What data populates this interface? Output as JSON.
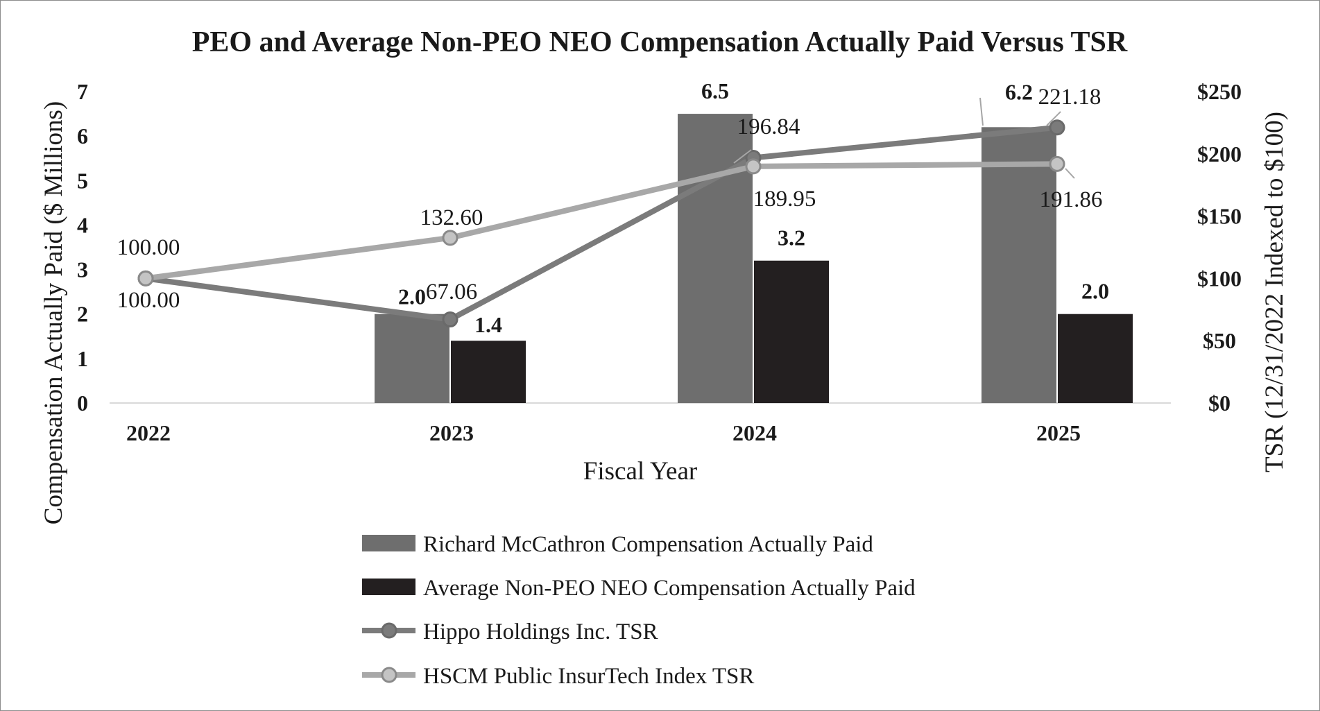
{
  "chart_data": {
    "type": "bar",
    "title": "PEO and Average Non-PEO NEO Compensation Actually Paid Versus TSR",
    "xlabel": "Fiscal Year",
    "ylabel": "Compensation Actually Paid ($ Millions)",
    "y2label": "TSR (12/31/2022 Indexed to $100)",
    "categories": [
      "2022",
      "2023",
      "2024",
      "2025"
    ],
    "ylim": [
      0,
      7
    ],
    "yticks": [
      "0",
      "1",
      "2",
      "3",
      "4",
      "5",
      "6",
      "7"
    ],
    "y2lim": [
      0,
      250
    ],
    "y2ticks": [
      "$0",
      "$50",
      "$100",
      "$150",
      "$200",
      "$250"
    ],
    "grid": false,
    "legend_position": "bottom",
    "series": [
      {
        "name": "Richard McCathron Compensation Actually Paid",
        "type": "bar",
        "axis": "left",
        "color": "#6e6e6e",
        "values": [
          null,
          2.0,
          6.5,
          6.2
        ],
        "labels": [
          "",
          "2.0",
          "6.5",
          "6.2"
        ]
      },
      {
        "name": "Average Non-PEO NEO Compensation Actually Paid",
        "type": "bar",
        "axis": "left",
        "color": "#231f20",
        "values": [
          null,
          1.4,
          3.2,
          2.0
        ],
        "labels": [
          "",
          "1.4",
          "3.2",
          "2.0"
        ]
      },
      {
        "name": "Hippo Holdings Inc. TSR",
        "type": "line",
        "axis": "right",
        "color": "#7b7b7b",
        "values": [
          100.0,
          67.06,
          196.84,
          221.18
        ],
        "labels": [
          "100.00",
          "67.06",
          "196.84",
          "221.18"
        ]
      },
      {
        "name": "HSCM Public InsurTech Index TSR",
        "type": "line",
        "axis": "right",
        "color": "#a8a8a8",
        "values": [
          100.0,
          132.6,
          189.95,
          191.86
        ],
        "labels": [
          "100.00",
          "132.60",
          "189.95",
          "191.86"
        ]
      }
    ]
  }
}
